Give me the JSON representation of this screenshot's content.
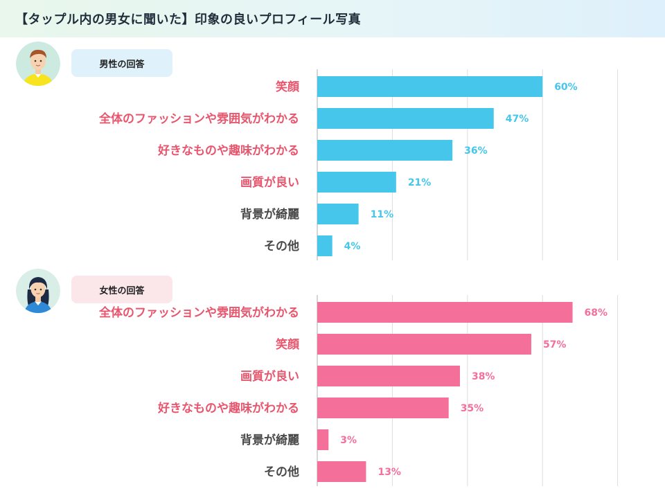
{
  "header": {
    "title": "【タップル内の男女に聞いた】印象の良いプロフィール写真"
  },
  "colors": {
    "male_bar": "#45c6ea",
    "female_bar": "#f46f9a",
    "label_highlight": "#e8566e",
    "label_normal": "#4a4a4a",
    "grid": "#dddddd"
  },
  "male": {
    "tag_label": "男性の回答",
    "avatar_icon": "male-avatar-icon"
  },
  "female": {
    "tag_label": "女性の回答",
    "avatar_icon": "female-avatar-icon"
  },
  "chart_data": [
    {
      "type": "bar",
      "orientation": "horizontal",
      "categories": [
        "笑顔",
        "全体のファッションや雰囲気がわかる",
        "好きなものや趣味がわかる",
        "画質が良い",
        "背景が綺麗",
        "その他"
      ],
      "values": [
        60,
        47,
        36,
        21,
        11,
        4
      ],
      "value_labels": [
        "60%",
        "47%",
        "36%",
        "21%",
        "11%",
        "4%"
      ],
      "highlighted": [
        true,
        true,
        true,
        true,
        false,
        false
      ],
      "xlim": [
        0,
        80
      ],
      "grid": true
    },
    {
      "type": "bar",
      "orientation": "horizontal",
      "categories": [
        "全体のファッションや雰囲気がわかる",
        "笑顔",
        "画質が良い",
        "好きなものや趣味がわかる",
        "背景が綺麗",
        "その他"
      ],
      "values": [
        68,
        57,
        38,
        35,
        3,
        13
      ],
      "value_labels": [
        "68%",
        "57%",
        "38%",
        "35%",
        "3%",
        "13%"
      ],
      "highlighted": [
        true,
        true,
        true,
        true,
        false,
        false
      ],
      "xlim": [
        0,
        80
      ],
      "grid": true
    }
  ]
}
